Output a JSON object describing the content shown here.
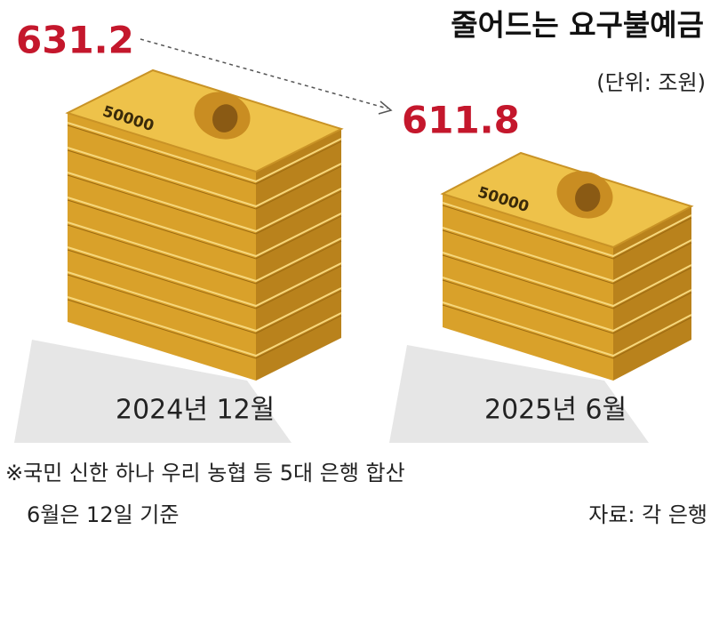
{
  "chart_data": {
    "type": "pictorial",
    "title": "줄어드는 요구불예금",
    "subtitle": "(단위: 조원)",
    "categories": [
      "2024년 12월",
      "2025년 6월"
    ],
    "values": [
      631.2,
      611.8
    ],
    "color": "#d9a12a",
    "value_color": "#c4172c",
    "bill_label": "50000",
    "notes": [
      "※국민 신한 하나 우리 농협 등 5대 은행 합산",
      "6월은 12일 기준"
    ],
    "source": "자료: 각 은행"
  }
}
